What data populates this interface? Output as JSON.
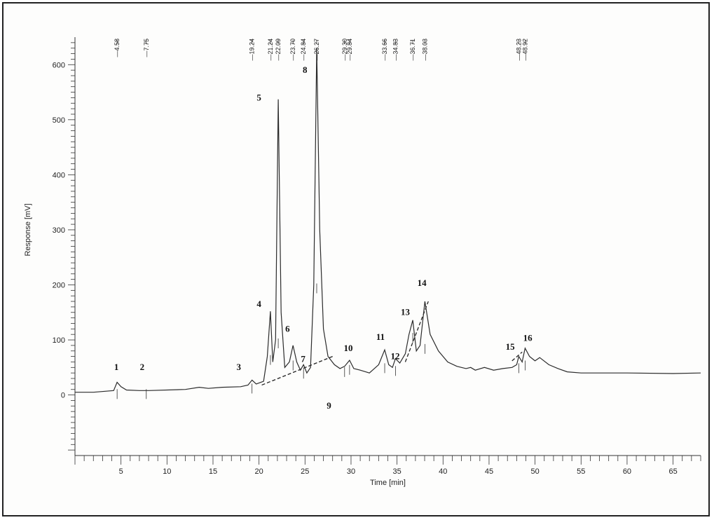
{
  "chart_data": {
    "type": "line",
    "xlabel": "Time [min]",
    "ylabel": "Response [mV]",
    "xlim": [
      0,
      68
    ],
    "ylim": [
      -110,
      650
    ],
    "x_ticks": [
      5,
      10,
      15,
      20,
      25,
      30,
      35,
      40,
      45,
      50,
      55,
      60,
      65
    ],
    "y_ticks": [
      0,
      100,
      200,
      300,
      400,
      500,
      600
    ],
    "retention_times": [
      {
        "t": 4.58,
        "label": "4.58"
      },
      {
        "t": 7.75,
        "label": "7.75"
      },
      {
        "t": 19.24,
        "label": "19.24"
      },
      {
        "t": 21.24,
        "label": "21.24"
      },
      {
        "t": 22.09,
        "label": "22.09"
      },
      {
        "t": 23.7,
        "label": "23.70"
      },
      {
        "t": 24.84,
        "label": "24.84"
      },
      {
        "t": 26.27,
        "label": "26.27"
      },
      {
        "t": 29.3,
        "label": "29.30"
      },
      {
        "t": 29.84,
        "label": "29.84"
      },
      {
        "t": 33.66,
        "label": "33.66"
      },
      {
        "t": 34.83,
        "label": "34.83"
      },
      {
        "t": 36.71,
        "label": "36.71"
      },
      {
        "t": 38.03,
        "label": "38.03"
      },
      {
        "t": 48.23,
        "label": "48.23"
      },
      {
        "t": 48.92,
        "label": "48.92"
      }
    ],
    "peak_labels": [
      {
        "label": "1",
        "t": 4.5,
        "y": 45
      },
      {
        "label": "2",
        "t": 7.3,
        "y": 45
      },
      {
        "label": "3",
        "t": 17.8,
        "y": 45
      },
      {
        "label": "4",
        "t": 20.0,
        "y": 160
      },
      {
        "label": "5",
        "t": 20.0,
        "y": 535
      },
      {
        "label": "6",
        "t": 23.1,
        "y": 115
      },
      {
        "label": "7",
        "t": 24.8,
        "y": 60
      },
      {
        "label": "8",
        "t": 25.0,
        "y": 585
      },
      {
        "label": "9",
        "t": 27.6,
        "y": -25
      },
      {
        "label": "10",
        "t": 29.7,
        "y": 80
      },
      {
        "label": "11",
        "t": 33.2,
        "y": 100
      },
      {
        "label": "12",
        "t": 34.8,
        "y": 65
      },
      {
        "label": "13",
        "t": 35.9,
        "y": 145
      },
      {
        "label": "14",
        "t": 37.7,
        "y": 198
      },
      {
        "label": "15",
        "t": 47.3,
        "y": 82
      },
      {
        "label": "16",
        "t": 49.2,
        "y": 98
      }
    ],
    "series": [
      {
        "x": [
          0,
          2,
          4.2,
          4.58,
          5.0,
          5.6,
          7,
          8,
          12,
          13.5,
          14.5,
          16,
          18,
          18.8,
          19.24,
          19.7,
          20.5,
          20.9,
          21.24,
          21.5,
          21.8,
          22.09,
          22.4,
          22.8,
          23.3,
          23.7,
          24.1,
          24.5,
          24.84,
          25.2,
          25.6,
          25.95,
          26.27,
          26.6,
          27.0,
          27.5,
          28.2,
          28.8,
          29.3,
          29.84,
          30.3,
          31.0,
          32.0,
          33.0,
          33.66,
          34.1,
          34.5,
          34.83,
          35.3,
          35.9,
          36.3,
          36.71,
          37.1,
          37.5,
          38.03,
          38.6,
          39.5,
          40.5,
          41.5,
          42.5,
          43,
          43.5,
          44.5,
          45.5,
          46.5,
          47.5,
          48.0,
          48.23,
          48.6,
          48.92,
          49.4,
          50.0,
          50.5,
          51.5,
          52.5,
          53.5,
          55,
          60,
          65,
          68
        ],
        "y": [
          5,
          5,
          8,
          23,
          15,
          9,
          8,
          8,
          10,
          14,
          12,
          14,
          15,
          18,
          27,
          20,
          25,
          70,
          152,
          60,
          100,
          537,
          150,
          50,
          60,
          90,
          60,
          45,
          55,
          40,
          50,
          200,
          630,
          300,
          120,
          70,
          55,
          48,
          52,
          63,
          48,
          45,
          40,
          55,
          82,
          55,
          50,
          66,
          58,
          75,
          110,
          136,
          80,
          90,
          170,
          110,
          80,
          60,
          52,
          48,
          50,
          45,
          50,
          45,
          48,
          50,
          55,
          70,
          60,
          85,
          70,
          62,
          68,
          55,
          48,
          42,
          40,
          40,
          39,
          40
        ]
      }
    ],
    "baseline_segments": [
      {
        "x": [
          20.3,
          28.0
        ],
        "y": [
          18,
          70
        ]
      },
      {
        "x": [
          35.9,
          38.4
        ],
        "y": [
          60,
          170
        ]
      },
      {
        "x": [
          47.5,
          48.6
        ],
        "y": [
          62,
          78
        ]
      }
    ],
    "colors": {
      "trace": "#2b2b2b",
      "axes": "#333333"
    }
  }
}
